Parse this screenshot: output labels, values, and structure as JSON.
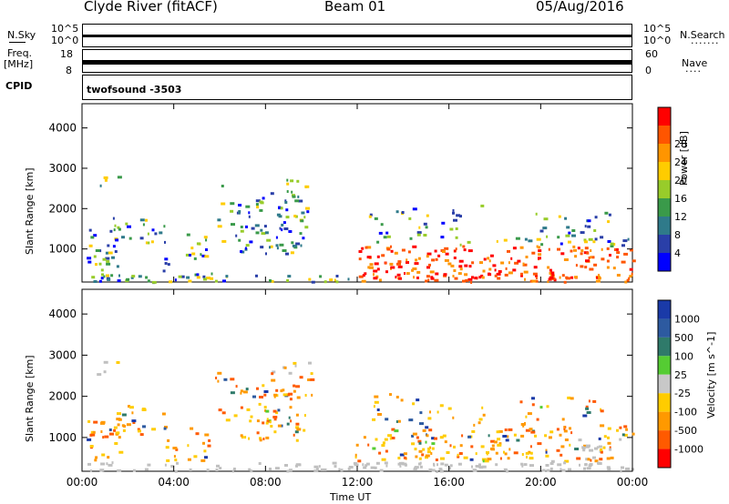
{
  "header": {
    "station": "Clyde River (fitACF)",
    "beam": "Beam 01",
    "date": "05/Aug/2016"
  },
  "strips": {
    "nsky_label": "N.Sky",
    "nsearch_label": "N.Search",
    "nsearch_dots": ".......",
    "freq_label": "Freq.",
    "freq_unit": "[MHz]",
    "nave_label": "Nave",
    "nave_dots": "....",
    "cpid_label": "CPID",
    "cpid_value": "twofsound -3503",
    "left_ticks_top": [
      "10^5",
      "10^0"
    ],
    "right_ticks_top": [
      "10^5",
      "10^0"
    ],
    "left_ticks_freq": [
      "18",
      "8"
    ],
    "right_ticks_nave": [
      "60",
      "0"
    ]
  },
  "chart_data": [
    {
      "type": "heatmap",
      "quantity": "power",
      "xlabel": "",
      "ylabel": "Slant Range [km]",
      "x_ticks": [
        "00:00",
        "04:00",
        "08:00",
        "12:00",
        "16:00",
        "20:00",
        "00:00"
      ],
      "xlim_hours": [
        0,
        24
      ],
      "y_ticks": [
        1000,
        2000,
        3000,
        4000
      ],
      "ylim": [
        180,
        4600
      ],
      "colorbar": {
        "label": "Power [dB]",
        "ticks": [
          "4",
          "8",
          "12",
          "16",
          "20",
          "24",
          "28"
        ],
        "colors": [
          "#0000ff",
          "#2a3fa8",
          "#2f7a8a",
          "#3a9a4a",
          "#98cc2a",
          "#ffcc00",
          "#ff9500",
          "#ff5500",
          "#ff0000"
        ]
      }
    },
    {
      "type": "heatmap",
      "quantity": "velocity",
      "xlabel": "Time UT",
      "ylabel": "Slant Range [km]",
      "x_ticks": [
        "00:00",
        "04:00",
        "08:00",
        "12:00",
        "16:00",
        "20:00",
        "00:00"
      ],
      "xlim_hours": [
        0,
        24
      ],
      "y_ticks": [
        1000,
        2000,
        3000,
        4000
      ],
      "ylim": [
        180,
        4600
      ],
      "colorbar": {
        "label": "Velocity [m s^-1]",
        "ticks": [
          "1000",
          "500",
          "100",
          "25",
          "-25",
          "-100",
          "-500",
          "-1000"
        ],
        "colors": [
          "#1a3aa8",
          "#2d5aa0",
          "#2f7a6a",
          "#55cc33",
          "#c8c8c8",
          "#ffcc00",
          "#ff9900",
          "#ff5a00",
          "#ff0000"
        ]
      }
    }
  ],
  "colors": {
    "axis": "#000000",
    "ground_scatter": "#c0c0c0"
  }
}
